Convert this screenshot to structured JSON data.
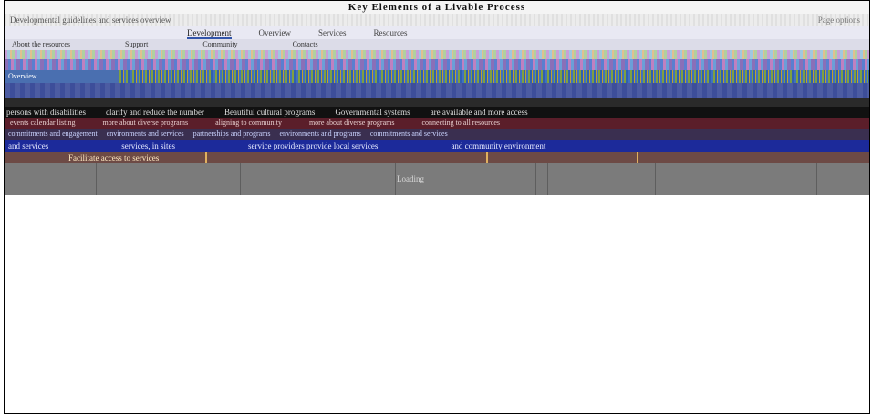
{
  "window": {
    "title": "Key Elements of a Livable Process",
    "subtitle": "Developmental guidelines and services overview",
    "subtitle_right": "Page options"
  },
  "tabs": [
    {
      "label": "Development"
    },
    {
      "label": "Overview"
    },
    {
      "label": "Services"
    },
    {
      "label": "Resources"
    }
  ],
  "meta": [
    "About the resources",
    "Support",
    "Community",
    "Contacts"
  ],
  "colors": {
    "title_bg": "#f4f4f4",
    "blue_row": "#3d4e9a",
    "black_row": "#111111",
    "maroon_row": "#5b1e2a",
    "navy_row": "#1c2a9a",
    "tan_row": "#6d4a45",
    "grey_panel": "#7b7b7b"
  },
  "rows": {
    "bar_label": "Overview",
    "black_row": [
      "persons with disabilities",
      "clarify and reduce the number",
      "Beautiful cultural programs",
      "Governmental systems",
      "are available and more access"
    ],
    "maroon_row": [
      "events calendar listing",
      "more about diverse programs",
      "aligning to community",
      "more about diverse programs",
      "connecting to all resources"
    ],
    "pattern_row": [
      "commitments and engagement",
      "environments and services",
      "partnerships and programs",
      "environments and programs",
      "commitments and services"
    ],
    "navy_row": [
      "and services",
      "services, in sites",
      "service providers provide local services",
      "and community environment"
    ],
    "tan_row": "Facilitate access to services"
  },
  "status": "Loading"
}
